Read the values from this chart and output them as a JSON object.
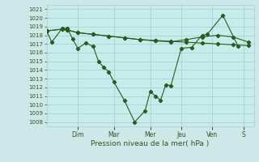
{
  "xlabel": "Pression niveau de la mer( hPa )",
  "bg_color": "#cde8e8",
  "plot_bg_color": "#c8ecec",
  "line_color": "#2d5a1b",
  "grid_color": "#a8cccc",
  "ylim": [
    1007.5,
    1021.5
  ],
  "yticks": [
    1008,
    1009,
    1010,
    1011,
    1012,
    1013,
    1014,
    1015,
    1016,
    1017,
    1018,
    1019,
    1020,
    1021
  ],
  "xlim": [
    0,
    20
  ],
  "day_labels": [
    "Dim",
    "Mar",
    "Mer",
    "Jeu",
    "Ven",
    "S"
  ],
  "day_positions": [
    3.0,
    6.5,
    10.0,
    13.0,
    16.0,
    19.0
  ],
  "series1_x": [
    0,
    0.5,
    1.5,
    2.0,
    2.5,
    3.0,
    3.8,
    4.5,
    5.0,
    5.5,
    6.0,
    6.5,
    7.5,
    8.5,
    9.5,
    10.0,
    10.5,
    11.0,
    11.5,
    12.0,
    13.0,
    14.0,
    15.0,
    15.5,
    17.0,
    18.5
  ],
  "series1_y": [
    1018.5,
    1017.2,
    1018.8,
    1018.8,
    1017.6,
    1016.5,
    1017.1,
    1016.7,
    1015.0,
    1014.3,
    1013.8,
    1012.6,
    1010.5,
    1008.0,
    1009.3,
    1011.5,
    1011.0,
    1010.5,
    1012.3,
    1012.2,
    1016.5,
    1016.6,
    1018.0,
    1018.1,
    1020.3,
    1016.7
  ],
  "series2_x": [
    0,
    1.5,
    2.0,
    3.0,
    4.5,
    6.0,
    7.5,
    9.0,
    10.5,
    12.0,
    13.5,
    15.0,
    16.5,
    18.0,
    19.5
  ],
  "series2_y": [
    1018.5,
    1018.7,
    1018.6,
    1018.3,
    1018.1,
    1017.9,
    1017.7,
    1017.5,
    1017.4,
    1017.3,
    1017.2,
    1017.1,
    1017.0,
    1016.9,
    1016.8
  ],
  "series3_x": [
    0,
    1.5,
    2.0,
    3.0,
    4.5,
    6.0,
    7.5,
    9.0,
    10.5,
    12.0,
    13.5,
    15.0,
    16.5,
    18.0,
    19.5
  ],
  "series3_y": [
    1018.5,
    1018.7,
    1018.6,
    1018.3,
    1018.1,
    1017.9,
    1017.7,
    1017.5,
    1017.35,
    1017.25,
    1017.5,
    1017.8,
    1018.0,
    1017.8,
    1017.2
  ]
}
